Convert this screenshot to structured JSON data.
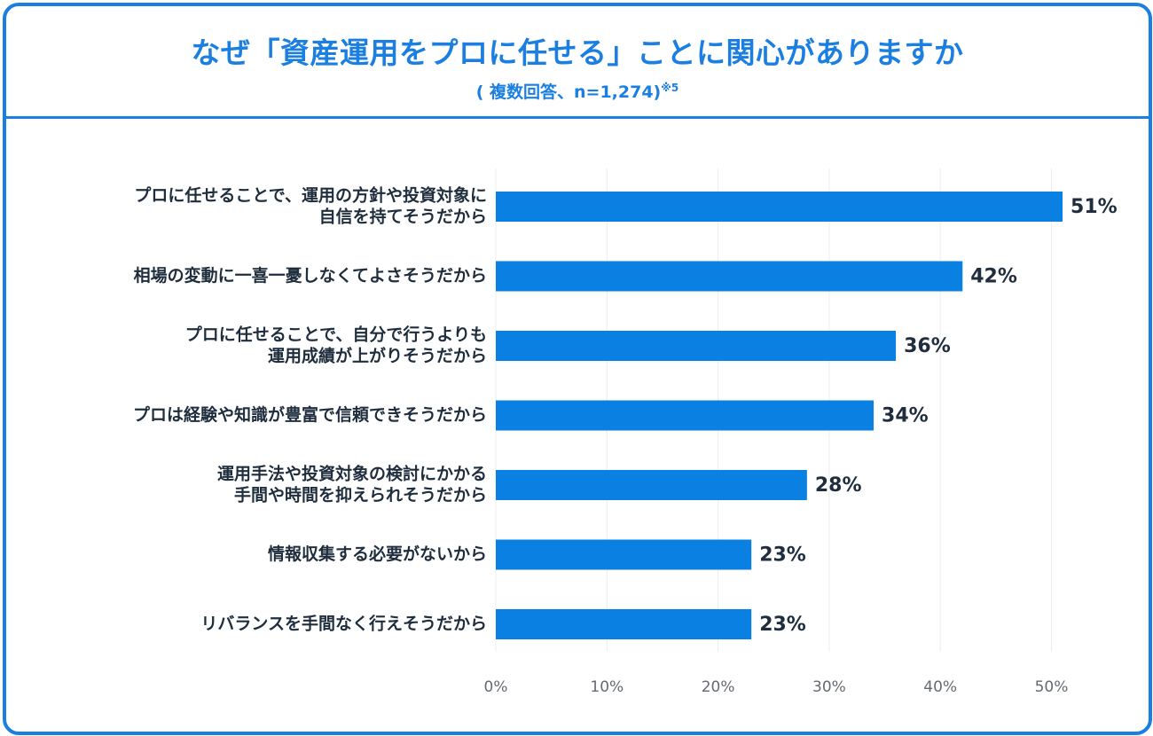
{
  "header": {
    "title": "なぜ「資産運用をプロに任せる」ことに関心がありますか",
    "subtitle": "( 複数回答、n=1,274)",
    "footnote": "※5"
  },
  "colors": {
    "accent": "#1a7fe0",
    "bar": "#0b80e3",
    "text": "#1f2d3d",
    "tick": "#666a70",
    "grid": "#ececec"
  },
  "chart_data": {
    "type": "bar",
    "orientation": "horizontal",
    "title": "なぜ「資産運用をプロに任せる」ことに関心がありますか",
    "subtitle": "( 複数回答、n=1,274)",
    "xlabel": "",
    "ylabel": "",
    "xlim": [
      0,
      50
    ],
    "grid": true,
    "categories": [
      [
        "プロに任せることで、運用の方針や投資対象に",
        "自信を持てそうだから"
      ],
      [
        "相場の変動に一喜一憂しなくてよさそうだから"
      ],
      [
        "プロに任せることで、自分で行うよりも",
        "運用成績が上がりそうだから"
      ],
      [
        "プロは経験や知識が豊富で信頼できそうだから"
      ],
      [
        "運用手法や投資対象の検討にかかる",
        "手間や時間を抑えられそうだから"
      ],
      [
        "情報収集する必要がないから"
      ],
      [
        "リバランスを手間なく行えそうだから"
      ]
    ],
    "values": [
      51,
      42,
      36,
      34,
      28,
      23,
      23
    ],
    "value_labels": [
      "51%",
      "42%",
      "36%",
      "34%",
      "28%",
      "23%",
      "23%"
    ],
    "ticks": [
      0,
      10,
      20,
      30,
      40,
      50
    ],
    "tick_labels": [
      "0%",
      "10%",
      "20%",
      "30%",
      "40%",
      "50%"
    ]
  }
}
